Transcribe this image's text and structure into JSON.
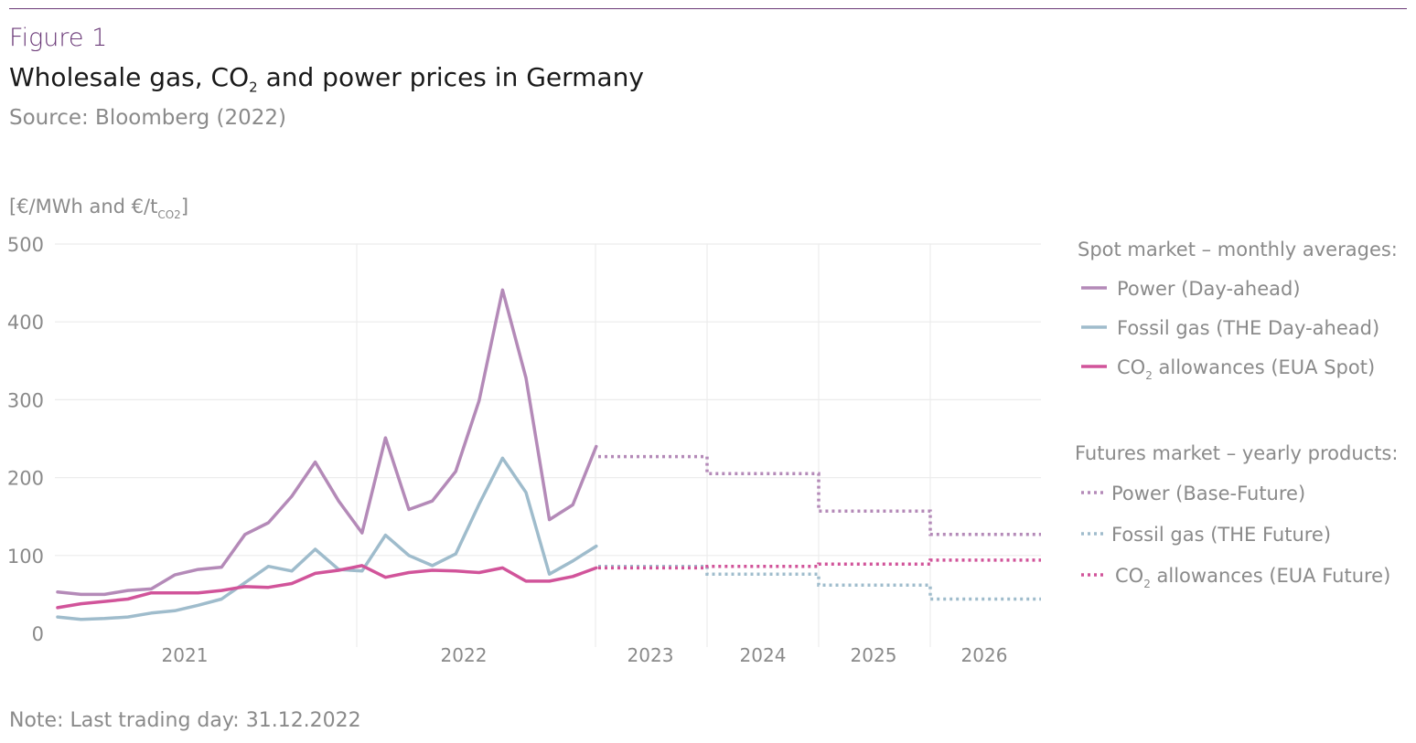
{
  "figure": {
    "label": "Figure 1",
    "title_pre": "Wholesale gas, CO",
    "title_sub": "2",
    "title_post": " and power prices in Germany",
    "source": "Source: Bloomberg (2022)",
    "note": "Note: Last trading day: 31.12.2022"
  },
  "colors": {
    "power": "#b48ab8",
    "gas": "#9fbccc",
    "co2": "#d1549a",
    "grid": "#ececec",
    "axis_text": "#8a8a8a"
  },
  "chart_data": {
    "type": "line",
    "ylabel_pre": "[€/MWh and €/t",
    "ylabel_sub": "CO2",
    "ylabel_post": "]",
    "ylim": [
      0,
      500
    ],
    "y_ticks": [
      0,
      100,
      200,
      300,
      400,
      500
    ],
    "x_tick_labels": [
      "2021",
      "2022",
      "2023",
      "2024",
      "2025",
      "2026"
    ],
    "grid": true,
    "legend_position": "right",
    "legend": {
      "spot_heading": "Spot market – monthly averages:",
      "futures_heading": "Futures market – yearly products:",
      "spot_items": [
        {
          "key": "power",
          "label": "Power (Day-ahead)",
          "pre": "",
          "sub": "",
          "post": ""
        },
        {
          "key": "gas",
          "label": "Fossil gas (THE Day-ahead)",
          "pre": "",
          "sub": "",
          "post": ""
        },
        {
          "key": "co2",
          "label": "",
          "pre": "CO",
          "sub": "2",
          "post": " allowances (EUA Spot)"
        }
      ],
      "futures_items": [
        {
          "key": "power",
          "label": "Power (Base-Future)",
          "pre": "",
          "sub": "",
          "post": ""
        },
        {
          "key": "gas",
          "label": "Fossil gas (THE Future)",
          "pre": "",
          "sub": "",
          "post": ""
        },
        {
          "key": "co2",
          "label": "",
          "pre": "CO",
          "sub": "2",
          "post": " allowances (EUA Future)"
        }
      ]
    },
    "spot_months": [
      "2021-01",
      "2021-02",
      "2021-03",
      "2021-04",
      "2021-05",
      "2021-06",
      "2021-07",
      "2021-08",
      "2021-09",
      "2021-10",
      "2021-11",
      "2021-12",
      "2022-01",
      "2022-02",
      "2022-03",
      "2022-04",
      "2022-05",
      "2022-06",
      "2022-07",
      "2022-08",
      "2022-09",
      "2022-10",
      "2022-11",
      "2022-12"
    ],
    "spot_series": [
      {
        "key": "power",
        "name": "Power (Day-ahead)",
        "values": [
          53,
          50,
          50,
          55,
          57,
          75,
          82,
          85,
          127,
          142,
          176,
          220,
          170,
          129,
          251,
          159,
          170,
          208,
          299,
          441,
          328,
          146,
          165,
          240
        ]
      },
      {
        "key": "gas",
        "name": "Fossil gas (THE Day-ahead)",
        "values": [
          21,
          18,
          19,
          21,
          26,
          29,
          36,
          44,
          65,
          86,
          80,
          108,
          82,
          80,
          126,
          100,
          87,
          102,
          166,
          225,
          181,
          76,
          93,
          112
        ]
      },
      {
        "key": "co2",
        "name": "CO2 allowances (EUA Spot)",
        "values": [
          33,
          38,
          41,
          44,
          52,
          52,
          52,
          55,
          60,
          59,
          64,
          77,
          81,
          87,
          72,
          78,
          81,
          80,
          78,
          84,
          67,
          67,
          73,
          84
        ]
      }
    ],
    "futures_years": [
      "2023",
      "2024",
      "2025",
      "2026"
    ],
    "futures_series": [
      {
        "key": "power",
        "name": "Power (Base-Future)",
        "values": [
          227,
          205,
          157,
          127
        ]
      },
      {
        "key": "gas",
        "name": "Fossil gas (THE Future)",
        "values": [
          86,
          76,
          62,
          44
        ]
      },
      {
        "key": "co2",
        "name": "CO2 allowances (EUA Future)",
        "values": [
          84,
          86,
          89,
          94
        ]
      }
    ]
  }
}
